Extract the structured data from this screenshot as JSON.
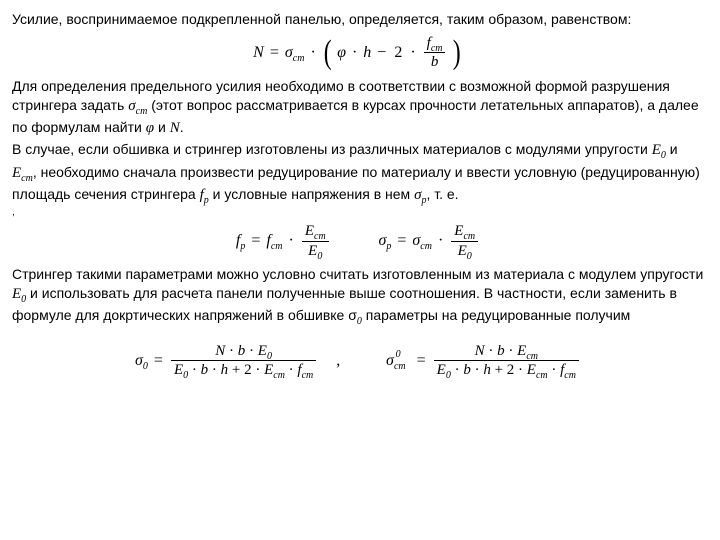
{
  "p1": "Усилие, воспринимаемое подкрепленной панелью, определяется, таким образом, равенством:",
  "p2a": "Для определения предельного усилия необходимо в соответствии с возможной формой разрушения стрингера задать ",
  "sigma_cm": "σ",
  "sigma_cm_sub": "ст",
  "p2b": " (этот вопрос рассматривается в курсах прочности летательных аппаратов), а далее по формулам найти ",
  "phi": "φ",
  "p2c": " и ",
  "N": "N",
  "p2d": ".",
  "p3a": "В случае, если обшивка и стрингер изготовлены из различных материалов с модулями упругости ",
  "E0": "E",
  "E0_sub": "0",
  "p3b": " и ",
  "Ecm": "E",
  "Ecm_sub": "ст",
  "p3c": ", необходимо сначала произвести редуцирование по материалу и ввести условную (редуцированную) площадь сечения стрингера ",
  "fp": "f",
  "fp_sub": "р",
  "p3d": " и условные напряжения в нем ",
  "sigmap": "σ",
  "sigmap_sub": "р",
  "p3e": ", т. е.",
  "tiny": ",",
  "p4a": "Стрингер такими параметрами можно условно считать изготовленным из материала с модулем упругости ",
  "p4b": " и использовать для расчета панели полученные выше соотношения. В частности, если заменить в формуле для докртических напряжений в обшивке σ",
  "p4c": " параметры на редуцированные получим",
  "eq1": {
    "lhs": "N",
    "eq": "=",
    "sigma": "σ",
    "sub_cm": "ст",
    "dot": "·",
    "phi": "φ",
    "h": "h",
    "minus": "−",
    "two": "2",
    "f": "f",
    "f_sub": "ст",
    "b": "b"
  },
  "eq2": {
    "f": "f",
    "p": "р",
    "eq": "=",
    "fcm": "f",
    "cm": "ст",
    "dot": "·",
    "Ecm": "E",
    "E0": "E",
    "zero": "0",
    "sigma": "σ",
    "sigcm": "ст"
  },
  "eq3": {
    "sigma": "σ",
    "zero": "0",
    "eq": "=",
    "N": "N",
    "b": "b",
    "E0": "E",
    "Ecm": "E",
    "cm": "ст",
    "h": "h",
    "two": "2",
    "f": "f",
    "dot": "·",
    "plus": "+",
    "comma": ",",
    "sup0": "0"
  }
}
